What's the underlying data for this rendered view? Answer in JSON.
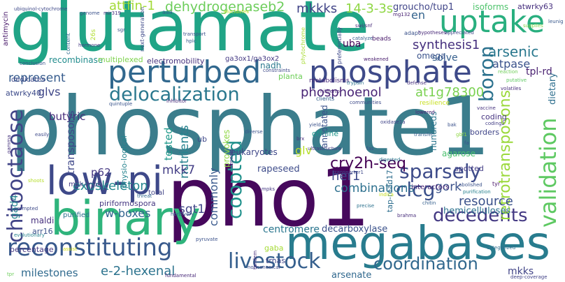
{
  "words": [
    {
      "text": "phosphate1",
      "color": "#3b7d8c"
    },
    {
      "text": "glutamate",
      "color": "#20a486"
    },
    {
      "text": "pho1",
      "color": "#46085c"
    },
    {
      "text": "megabases",
      "color": "#287c8e"
    },
    {
      "text": "binary",
      "color": "#2fb47c"
    },
    {
      "text": "low-pi",
      "color": "#3e4989"
    },
    {
      "text": "perturbed",
      "color": "#31688e"
    },
    {
      "text": "phosphate",
      "color": "#3e4a89"
    },
    {
      "text": "uptake",
      "color": "#29af7f"
    },
    {
      "text": "reconstituting",
      "color": "#38598c"
    },
    {
      "text": "delocalization",
      "color": "#2a788e"
    },
    {
      "text": "chitooctaose",
      "color": "#414487"
    },
    {
      "text": "validation",
      "color": "#5ec962"
    },
    {
      "text": "livestock",
      "color": "#355f8d"
    },
    {
      "text": "coordination",
      "color": "#31688e"
    },
    {
      "text": "sparsely",
      "color": "#3e4c8a"
    },
    {
      "text": "decedents",
      "color": "#443983"
    },
    {
      "text": "dehydrogenaseb2",
      "color": "#6ccd5a"
    },
    {
      "text": "coopted",
      "color": "#21918c"
    },
    {
      "text": "clcg",
      "color": "#3b518b"
    },
    {
      "text": "boron",
      "color": "#2c728e"
    },
    {
      "text": "retrotransposons",
      "color": "#9bd93c"
    },
    {
      "text": "cry2h-seq",
      "color": "#440154"
    },
    {
      "text": "arsenic",
      "color": "#2a788e"
    },
    {
      "text": "synthesis1",
      "color": "#46307e"
    },
    {
      "text": "phosphoenol",
      "color": "#482475"
    },
    {
      "text": "at1g78300",
      "color": "#7ad151"
    },
    {
      "text": "mkkks",
      "color": "#414487"
    },
    {
      "text": "14-3-3s",
      "color": "#8fd744"
    },
    {
      "text": "atpase",
      "color": "#3b528b"
    },
    {
      "text": "milestones",
      "color": "#306a8e"
    },
    {
      "text": "e-2-hexenal",
      "color": "#2c738e"
    },
    {
      "text": "exoskeleton",
      "color": "#24868e"
    },
    {
      "text": "resource",
      "color": "#3b528b"
    },
    {
      "text": "attfin-1",
      "color": "#a2da37"
    },
    {
      "text": "represent",
      "color": "#365c8d"
    },
    {
      "text": "nutrients",
      "color": "#26828e"
    },
    {
      "text": "her1",
      "color": "#3e4a89"
    },
    {
      "text": "mkk7",
      "color": "#433e85"
    },
    {
      "text": "gork",
      "color": "#3b528b"
    },
    {
      "text": "sgt1",
      "color": "#404688"
    },
    {
      "text": "w-boxes",
      "color": "#32658e"
    },
    {
      "text": "commonly",
      "color": "#38588c"
    },
    {
      "text": "tested",
      "color": "#1f998a"
    },
    {
      "text": "combinations",
      "color": "#2d708e"
    },
    {
      "text": "glvs",
      "color": "#3f4788"
    },
    {
      "text": "glv",
      "color": "#b8de29"
    },
    {
      "text": "uba",
      "color": "#450559"
    },
    {
      "text": "butyric",
      "color": "#472d7b"
    },
    {
      "text": "transposons",
      "color": "#3f4889"
    },
    {
      "text": "p62",
      "color": "#453882"
    },
    {
      "text": "hemicelluloses",
      "color": "#2c728e"
    },
    {
      "text": "centromere",
      "color": "#2a768e"
    },
    {
      "text": "decarboxylase",
      "color": "#3b528b"
    },
    {
      "text": "gad4",
      "color": "#25848e"
    },
    {
      "text": "mkks",
      "color": "#414487"
    },
    {
      "text": "arsenate",
      "color": "#30688e"
    },
    {
      "text": "rapeseed",
      "color": "#3e4c8a"
    },
    {
      "text": "solve",
      "color": "#355f8d"
    },
    {
      "text": "tpl-rd",
      "color": "#481f70"
    },
    {
      "text": "dietary",
      "color": "#2e6f8e"
    },
    {
      "text": "en",
      "color": "#33638d"
    },
    {
      "text": "groucho/tup1",
      "color": "#404588"
    },
    {
      "text": "isoforms",
      "color": "#4ec36b"
    },
    {
      "text": "atwrky63",
      "color": "#462f7e"
    },
    {
      "text": "recombinase",
      "color": "#228c8d"
    },
    {
      "text": "electromobility",
      "color": "#46337e"
    },
    {
      "text": "multiplexed",
      "color": "#7fd34e"
    },
    {
      "text": "atwrky40",
      "color": "#3e4c8a"
    },
    {
      "text": "nadh",
      "color": "#2a788e"
    },
    {
      "text": "omega",
      "color": "#3a538b"
    },
    {
      "text": "beads",
      "color": "#48186a"
    },
    {
      "text": "eukaryotes",
      "color": "#3f4788"
    },
    {
      "text": "annotated",
      "color": "#3b528b"
    },
    {
      "text": "agarose",
      "color": "#4ac16d"
    },
    {
      "text": "spotted",
      "color": "#433e85"
    },
    {
      "text": "interactors",
      "color": "#482475"
    },
    {
      "text": "hundreds",
      "color": "#2a768e"
    },
    {
      "text": "coding",
      "color": "#463480"
    },
    {
      "text": "borders",
      "color": "#404588"
    },
    {
      "text": "tap-read17",
      "color": "#2e6e8e"
    },
    {
      "text": "ub",
      "color": "#3f4889"
    },
    {
      "text": "provokes",
      "color": "#8fd744"
    },
    {
      "text": "mkk-mpk",
      "color": "#443983"
    },
    {
      "text": "piriformospora",
      "color": "#453781"
    },
    {
      "text": "physio-logical",
      "color": "#25838e"
    },
    {
      "text": "maldi",
      "color": "#46307e"
    },
    {
      "text": "arr16",
      "color": "#3b528b"
    },
    {
      "text": "percentage",
      "color": "#453882"
    },
    {
      "text": "total",
      "color": "#414487"
    },
    {
      "text": "purified",
      "color": "#2d718e"
    },
    {
      "text": "gaba",
      "color": "#a5db36"
    },
    {
      "text": "trnas",
      "color": "#404688"
    },
    {
      "text": "off-line",
      "color": "#1f968b"
    },
    {
      "text": "planta",
      "color": "#6ece58"
    },
    {
      "text": "metabolisms",
      "color": "#482878"
    },
    {
      "text": "ga3ox1/ga3ox2",
      "color": "#443983"
    },
    {
      "text": "dedicates",
      "color": "#3e4989"
    },
    {
      "text": "antimycin",
      "color": "#48186a"
    },
    {
      "text": "conclusion",
      "color": "#3b528b"
    },
    {
      "text": "aaa",
      "color": "#355f8d"
    },
    {
      "text": "mir319",
      "color": "#46307e"
    },
    {
      "text": "genome",
      "color": "#3b528b"
    },
    {
      "text": "content",
      "color": "#2e6e8e"
    },
    {
      "text": "hormone",
      "color": "#453882"
    },
    {
      "text": "26s",
      "color": "#b0dd2f"
    },
    {
      "text": "ubiquinol-cytochrome",
      "color": "#3e4989"
    },
    {
      "text": "elucidates",
      "color": "#c2df23"
    },
    {
      "text": "adapt",
      "color": "#3b528b"
    },
    {
      "text": "hypotheses",
      "color": "#482878"
    },
    {
      "text": "appreciated",
      "color": "#404688"
    },
    {
      "text": "supplies",
      "color": "#84d44b"
    },
    {
      "text": "catalyze",
      "color": "#365d8d"
    },
    {
      "text": "swi/snf",
      "color": "#472c7a"
    },
    {
      "text": "mg132",
      "color": "#482173"
    },
    {
      "text": "constraints",
      "color": "#3e4989"
    },
    {
      "text": "defense",
      "color": "#46307e"
    },
    {
      "text": "resilience",
      "color": "#c8e020"
    },
    {
      "text": "clients",
      "color": "#34608d"
    },
    {
      "text": "reaction",
      "color": "#6ece58"
    },
    {
      "text": "leunig",
      "color": "#38588c"
    },
    {
      "text": "weakened",
      "color": "#481c6e"
    },
    {
      "text": "inhibitor",
      "color": "#472a7a"
    },
    {
      "text": "quintuple",
      "color": "#3a548c"
    },
    {
      "text": "threat",
      "color": "#31678e"
    },
    {
      "text": "fundamental",
      "color": "#482979"
    },
    {
      "text": "evolutionary",
      "color": "#26828e"
    },
    {
      "text": "herbivory",
      "color": "#38598c"
    },
    {
      "text": "prompted",
      "color": "#3e4a89"
    },
    {
      "text": "assist",
      "color": "#d8e219"
    },
    {
      "text": "pyruvate",
      "color": "#3b528b"
    },
    {
      "text": "noncanonical",
      "color": "#3e4989"
    },
    {
      "text": "tandem",
      "color": "#472d7b"
    },
    {
      "text": "tpr",
      "color": "#6ccd5a"
    },
    {
      "text": "categorized",
      "color": "#2e6e8e"
    },
    {
      "text": "deep-coverage",
      "color": "#414287"
    },
    {
      "text": "purification",
      "color": "#27808e"
    },
    {
      "text": "tyr",
      "color": "#481769"
    },
    {
      "text": "abolished",
      "color": "#3b528b"
    },
    {
      "text": "chitin",
      "color": "#355f8d"
    },
    {
      "text": "brahma",
      "color": "#472d7b"
    },
    {
      "text": "precise",
      "color": "#2c728e"
    },
    {
      "text": "transporter1",
      "color": "#3e4989"
    },
    {
      "text": "mpks",
      "color": "#443983"
    },
    {
      "text": "repeats",
      "color": "#46337e"
    },
    {
      "text": "diverse",
      "color": "#3b528b"
    },
    {
      "text": "ultrastructure",
      "color": "#453882"
    },
    {
      "text": "fas",
      "color": "#3b528b"
    },
    {
      "text": "digested",
      "color": "#2a788e"
    },
    {
      "text": "oxidase1a",
      "color": "#404588"
    },
    {
      "text": "transfer",
      "color": "#355f8d"
    },
    {
      "text": "lowered",
      "color": "#482374"
    },
    {
      "text": "communities",
      "color": "#3e4a89"
    },
    {
      "text": "hitherto",
      "color": "#482878"
    },
    {
      "text": "trypsin",
      "color": "#2c728e"
    },
    {
      "text": "yield",
      "color": "#3b528b"
    },
    {
      "text": "brx",
      "color": "#472d7b"
    },
    {
      "text": "easily",
      "color": "#3e4989"
    },
    {
      "text": "gamma",
      "color": "#46337e"
    },
    {
      "text": "shoots",
      "color": "#b5de2b"
    },
    {
      "text": "phytochrome",
      "color": "#a8db34"
    },
    {
      "text": "preferentially",
      "color": "#3f4889"
    },
    {
      "text": "transport",
      "color": "#3b528b"
    },
    {
      "text": "hplc",
      "color": "#365c8d"
    },
    {
      "text": "sgr",
      "color": "#3b528b"
    },
    {
      "text": "next-generation",
      "color": "#3e4989"
    },
    {
      "text": "coding2",
      "color": "#433e85"
    },
    {
      "text": "gbf1",
      "color": "#8fd744"
    },
    {
      "text": "fa",
      "color": "#3b528b"
    },
    {
      "text": "vaccine",
      "color": "#46337e"
    },
    {
      "text": "bak",
      "color": "#3b528b"
    },
    {
      "text": "putative",
      "color": "#5ec962"
    },
    {
      "text": "volatiles",
      "color": "#472d7b"
    },
    {
      "text": "indica",
      "color": "#c8e020"
    }
  ]
}
